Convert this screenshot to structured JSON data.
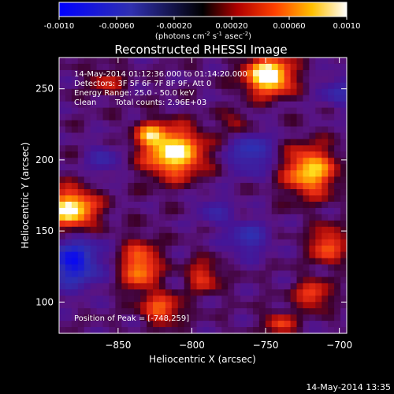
{
  "colorbar": {
    "ticks": [
      "-0.0010",
      "-0.00060",
      "-0.00020",
      "0.00020",
      "0.00060",
      "0.0010"
    ],
    "tick_values": [
      -0.001,
      -0.0006,
      -0.0002,
      0.0002,
      0.0006,
      0.001
    ],
    "range": [
      -0.001,
      0.001
    ],
    "units_main": "(photons cm",
    "units_exp1": "-2",
    "units_mid": " s",
    "units_exp2": "-1",
    "units_tail": " asec",
    "units_exp3": "-2",
    "units_close": ")"
  },
  "chart_data": {
    "type": "heatmap",
    "title": "Reconstructed RHESSI Image",
    "xlabel": "Heliocentric X (arcsec)",
    "ylabel": "Heliocentric Y (arcsec)",
    "xlim": [
      -890,
      -695
    ],
    "ylim": [
      78,
      272
    ],
    "x_ticks": [
      -850,
      -800,
      -750,
      -700
    ],
    "y_ticks": [
      100,
      150,
      200,
      250
    ],
    "annotations": {
      "line1": "14-May-2014 01:12:36.000 to 01:14:20.000",
      "line2": "Detectors: 3F 5F 6F 7F 8F 9F, Att 0",
      "line3": "Energy Range: 25.0 - 50.0 keV",
      "line4_a": "Clean",
      "line4_b": "Total counts: 2.96E+03",
      "peak": "Position of Peak = [-748,259]"
    },
    "peak": [
      -748,
      259
    ],
    "colormap": "RHESSI blue-black-red-yellow-white",
    "hot_spots": [
      {
        "x": -748,
        "y": 259,
        "amp": 1.15,
        "sx": 11,
        "sy": 9
      },
      {
        "x": -812,
        "y": 205,
        "amp": 1.0,
        "sx": 14,
        "sy": 12
      },
      {
        "x": -828,
        "y": 218,
        "amp": 0.55,
        "sx": 7,
        "sy": 6
      },
      {
        "x": -882,
        "y": 165,
        "amp": 1.0,
        "sx": 12,
        "sy": 10
      },
      {
        "x": -835,
        "y": 125,
        "amp": 0.7,
        "sx": 9,
        "sy": 12
      },
      {
        "x": -820,
        "y": 95,
        "amp": 0.6,
        "sx": 9,
        "sy": 7
      },
      {
        "x": -792,
        "y": 118,
        "amp": 0.45,
        "sx": 8,
        "sy": 8
      },
      {
        "x": -720,
        "y": 192,
        "amp": 0.85,
        "sx": 12,
        "sy": 12
      },
      {
        "x": -708,
        "y": 140,
        "amp": 0.6,
        "sx": 8,
        "sy": 9
      },
      {
        "x": -718,
        "y": 105,
        "amp": 0.55,
        "sx": 8,
        "sy": 7
      },
      {
        "x": -740,
        "y": 85,
        "amp": 0.45,
        "sx": 7,
        "sy": 6
      },
      {
        "x": -770,
        "y": 225,
        "amp": 0.35,
        "sx": 6,
        "sy": 6
      },
      {
        "x": -858,
        "y": 255,
        "amp": 0.35,
        "sx": 8,
        "sy": 7
      }
    ],
    "cold_spots": [
      {
        "x": -880,
        "y": 128,
        "amp": 0.85,
        "sx": 12,
        "sy": 12
      },
      {
        "x": -760,
        "y": 205,
        "amp": 0.55,
        "sx": 10,
        "sy": 10
      },
      {
        "x": -762,
        "y": 145,
        "amp": 0.45,
        "sx": 10,
        "sy": 9
      },
      {
        "x": -700,
        "y": 248,
        "amp": 0.4,
        "sx": 8,
        "sy": 8
      },
      {
        "x": -785,
        "y": 165,
        "amp": 0.3,
        "sx": 8,
        "sy": 8
      },
      {
        "x": -860,
        "y": 200,
        "amp": 0.35,
        "sx": 7,
        "sy": 8
      }
    ]
  },
  "footer_timestamp": "14-May-2014 13:35"
}
